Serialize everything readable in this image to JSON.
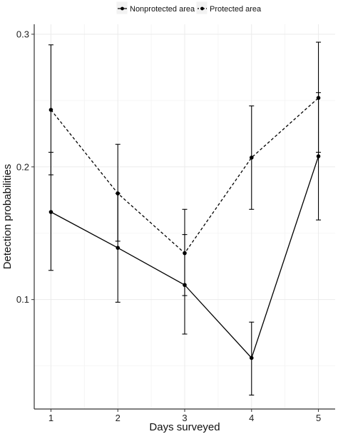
{
  "chart_data": {
    "type": "line",
    "xlabel": "Days surveyed",
    "ylabel": "Detection probabilities",
    "x": [
      1,
      2,
      3,
      4,
      5
    ],
    "xlim": [
      0.75,
      5.25
    ],
    "ylim": [
      0.0175,
      0.3075
    ],
    "y_ticks": [
      0.1,
      0.2,
      0.3
    ],
    "y_tick_labels": [
      "0.1",
      "0.2",
      "0.3"
    ],
    "grid": true,
    "legend_position": "top",
    "series": [
      {
        "name": "Nonprotected area",
        "line_style": "solid",
        "values": [
          0.166,
          0.139,
          0.111,
          0.056,
          0.208
        ],
        "lower": [
          0.122,
          0.098,
          0.074,
          0.028,
          0.16
        ],
        "upper": [
          0.211,
          0.18,
          0.149,
          0.083,
          0.256
        ]
      },
      {
        "name": "Protected area",
        "line_style": "dashed",
        "values": [
          0.243,
          0.18,
          0.135,
          0.207,
          0.252
        ],
        "lower": [
          0.194,
          0.144,
          0.103,
          0.168,
          0.211
        ],
        "upper": [
          0.292,
          0.217,
          0.168,
          0.246,
          0.294
        ]
      }
    ],
    "colors": {
      "line": "#000000",
      "grid": "#ebebeb",
      "axis": "#333333"
    }
  }
}
